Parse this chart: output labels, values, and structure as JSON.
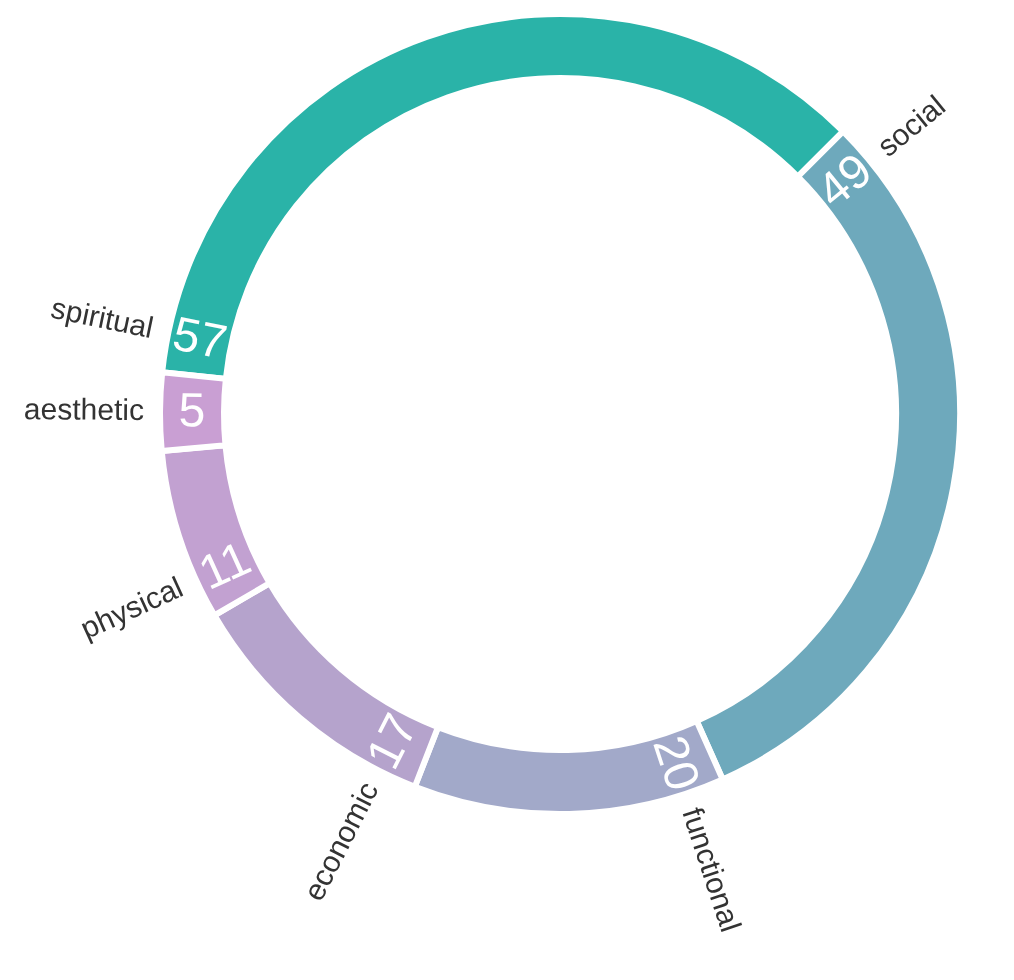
{
  "chart_data": {
    "type": "donut",
    "categories": [
      "spiritual",
      "social",
      "functional",
      "economic",
      "physical",
      "aesthetic"
    ],
    "values": [
      57,
      49,
      20,
      17,
      11,
      5
    ],
    "colors": [
      "#2ab3a8",
      "#6ea9bc",
      "#a2a9c9",
      "#b5a3cc",
      "#c2a1d1",
      "#c99fd3"
    ],
    "data_labels": true
  }
}
